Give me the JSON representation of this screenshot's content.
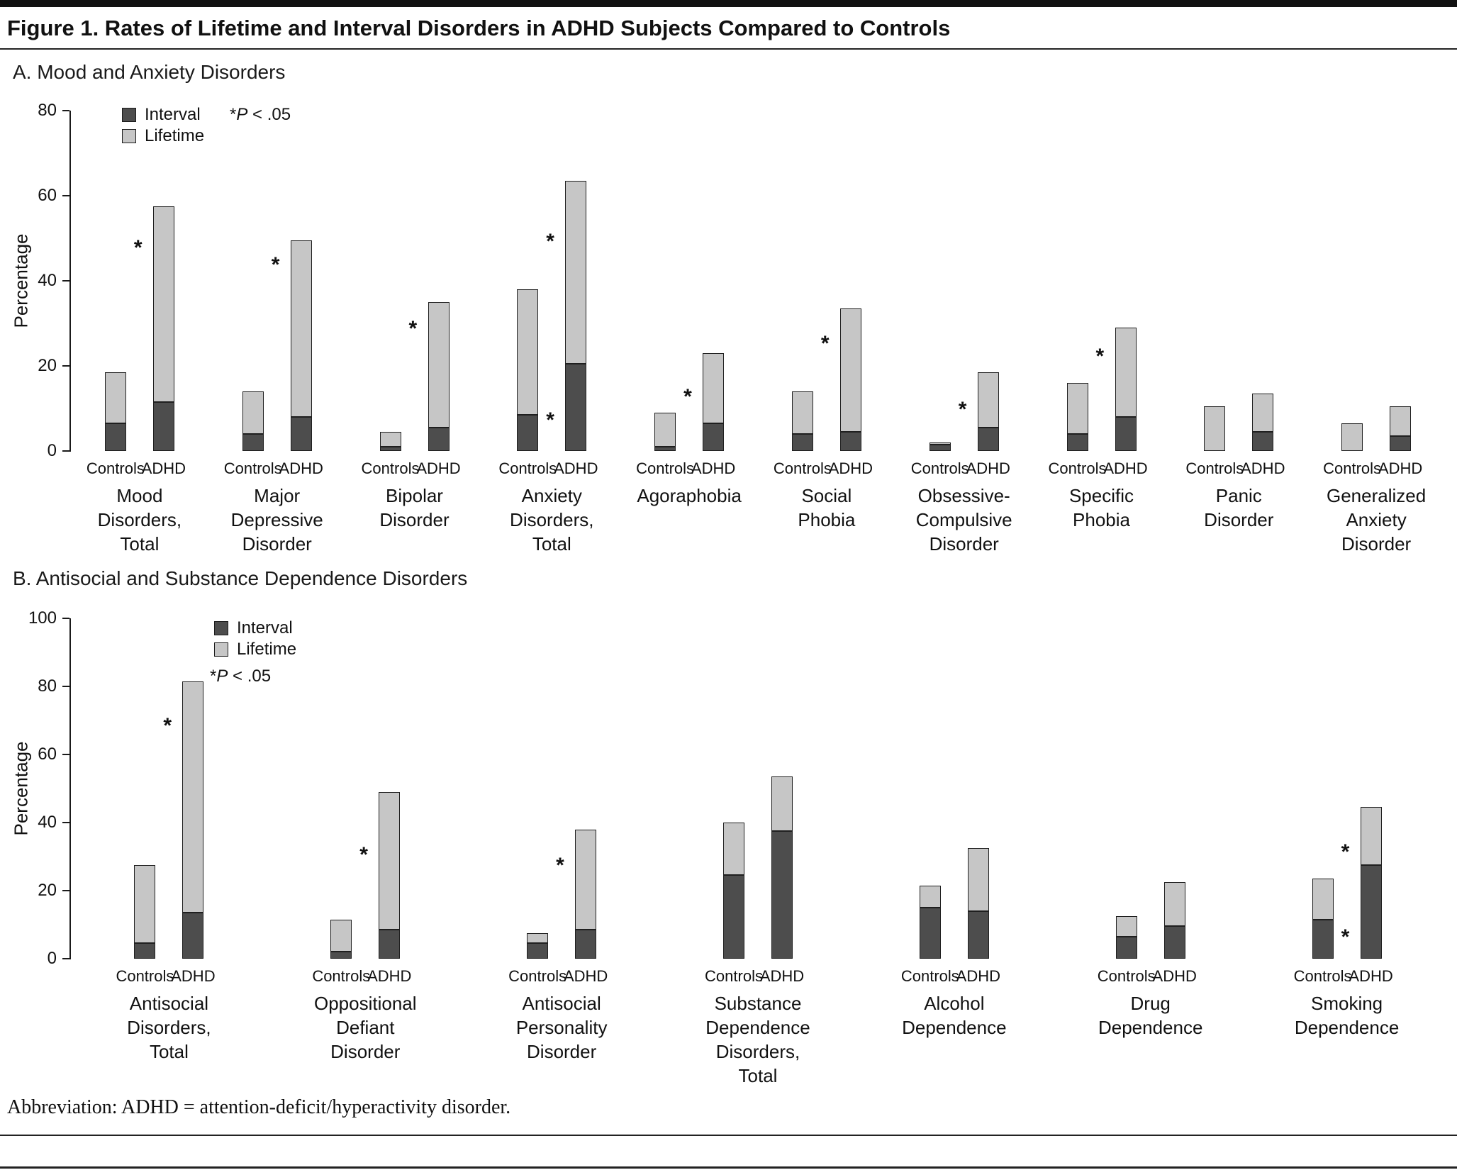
{
  "figure_title": "Figure 1. Rates of Lifetime and Interval Disorders in ADHD Subjects Compared to Controls",
  "footnote": "Abbreviation: ADHD = attention-deficit/hyperactivity disorder.",
  "colors": {
    "interval": "#4d4d4d",
    "lifetime": "#c6c6c6",
    "bar_border": "#1f1f1f"
  },
  "legend": {
    "interval_label": "Interval",
    "lifetime_label": "Lifetime",
    "significance_note": "*P < .05"
  },
  "bar_pair_labels": [
    "Controls",
    "ADHD"
  ],
  "chart_data": [
    {
      "type": "bar",
      "stacked": true,
      "title": "A. Mood and Anxiety Disorders",
      "ylabel": "Percentage",
      "ylim": [
        0,
        80
      ],
      "yticks": [
        0,
        20,
        40,
        60,
        80
      ],
      "series_labels": [
        "Controls",
        "ADHD"
      ],
      "segment_meaning": "interval = dark lower segment; lifetime = total bar height",
      "groups": [
        {
          "label_lines": [
            "Mood",
            "Disorders,",
            "Total"
          ],
          "controls": {
            "interval": 6.5,
            "lifetime": 18.5
          },
          "adhd": {
            "interval": 11.5,
            "lifetime": 57.5
          },
          "asterisks": [
            49
          ]
        },
        {
          "label_lines": [
            "Major",
            "Depressive",
            "Disorder"
          ],
          "controls": {
            "interval": 4,
            "lifetime": 14
          },
          "adhd": {
            "interval": 8,
            "lifetime": 49.5
          },
          "asterisks": [
            45
          ]
        },
        {
          "label_lines": [
            "Bipolar",
            "Disorder"
          ],
          "controls": {
            "interval": 1,
            "lifetime": 4.5
          },
          "adhd": {
            "interval": 5.5,
            "lifetime": 35
          },
          "asterisks": [
            30
          ]
        },
        {
          "label_lines": [
            "Anxiety",
            "Disorders,",
            "Total"
          ],
          "controls": {
            "interval": 8.5,
            "lifetime": 38
          },
          "adhd": {
            "interval": 20.5,
            "lifetime": 63.5
          },
          "asterisks": [
            50.5,
            8.5
          ]
        },
        {
          "label_lines": [
            "Agoraphobia"
          ],
          "controls": {
            "interval": 1,
            "lifetime": 9
          },
          "adhd": {
            "interval": 6.5,
            "lifetime": 23
          },
          "asterisks": [
            14
          ]
        },
        {
          "label_lines": [
            "Social",
            "Phobia"
          ],
          "controls": {
            "interval": 4,
            "lifetime": 14
          },
          "adhd": {
            "interval": 4.5,
            "lifetime": 33.5
          },
          "asterisks": [
            26.5
          ]
        },
        {
          "label_lines": [
            "Obsessive-",
            "Compulsive",
            "Disorder"
          ],
          "controls": {
            "interval": 1.5,
            "lifetime": 2
          },
          "adhd": {
            "interval": 5.5,
            "lifetime": 18.5
          },
          "asterisks": [
            11
          ]
        },
        {
          "label_lines": [
            "Specific",
            "Phobia"
          ],
          "controls": {
            "interval": 4,
            "lifetime": 16
          },
          "adhd": {
            "interval": 8,
            "lifetime": 29
          },
          "asterisks": [
            23.5
          ]
        },
        {
          "label_lines": [
            "Panic",
            "Disorder"
          ],
          "controls": {
            "interval": 0,
            "lifetime": 10.5
          },
          "adhd": {
            "interval": 4.5,
            "lifetime": 13.5
          },
          "asterisks": []
        },
        {
          "label_lines": [
            "Generalized",
            "Anxiety",
            "Disorder"
          ],
          "controls": {
            "interval": 0,
            "lifetime": 6.5
          },
          "adhd": {
            "interval": 3.5,
            "lifetime": 10.5
          },
          "asterisks": []
        }
      ]
    },
    {
      "type": "bar",
      "stacked": true,
      "title": "B. Antisocial and Substance Dependence Disorders",
      "ylabel": "Percentage",
      "ylim": [
        0,
        100
      ],
      "yticks": [
        0,
        20,
        40,
        60,
        80,
        100
      ],
      "series_labels": [
        "Controls",
        "ADHD"
      ],
      "segment_meaning": "interval = dark lower segment; lifetime = total bar height",
      "groups": [
        {
          "label_lines": [
            "Antisocial",
            "Disorders,",
            "Total"
          ],
          "controls": {
            "interval": 4.5,
            "lifetime": 27.5
          },
          "adhd": {
            "interval": 13.5,
            "lifetime": 81.5
          },
          "asterisks": [
            70
          ]
        },
        {
          "label_lines": [
            "Oppositional",
            "Defiant",
            "Disorder"
          ],
          "controls": {
            "interval": 2,
            "lifetime": 11.5
          },
          "adhd": {
            "interval": 8.5,
            "lifetime": 49
          },
          "asterisks": [
            32
          ]
        },
        {
          "label_lines": [
            "Antisocial",
            "Personality",
            "Disorder"
          ],
          "controls": {
            "interval": 4.5,
            "lifetime": 7.5
          },
          "adhd": {
            "interval": 8.5,
            "lifetime": 38
          },
          "asterisks": [
            29
          ]
        },
        {
          "label_lines": [
            "Substance",
            "Dependence",
            "Disorders,",
            "Total"
          ],
          "controls": {
            "interval": 24.5,
            "lifetime": 40
          },
          "adhd": {
            "interval": 37.5,
            "lifetime": 53.5
          },
          "asterisks": []
        },
        {
          "label_lines": [
            "Alcohol",
            "Dependence"
          ],
          "controls": {
            "interval": 15,
            "lifetime": 21.5
          },
          "adhd": {
            "interval": 14,
            "lifetime": 32.5
          },
          "asterisks": []
        },
        {
          "label_lines": [
            "Drug",
            "Dependence"
          ],
          "controls": {
            "interval": 6.5,
            "lifetime": 12.5
          },
          "adhd": {
            "interval": 9.5,
            "lifetime": 22.5
          },
          "asterisks": []
        },
        {
          "label_lines": [
            "Smoking",
            "Dependence"
          ],
          "controls": {
            "interval": 11.5,
            "lifetime": 23.5
          },
          "adhd": {
            "interval": 27.5,
            "lifetime": 44.5
          },
          "asterisks": [
            33,
            8
          ]
        }
      ]
    }
  ]
}
